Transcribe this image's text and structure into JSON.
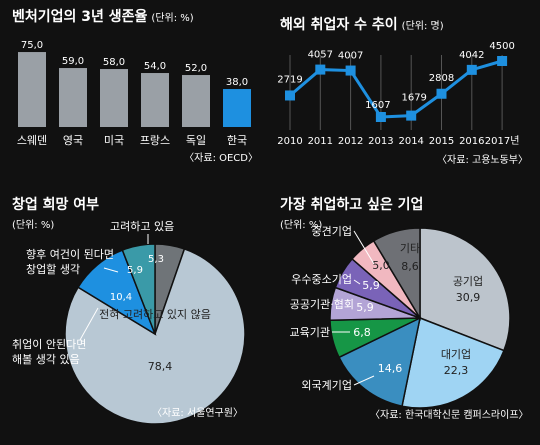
{
  "chart_data": [
    {
      "type": "bar",
      "title": "벤처기업의 3년 생존율",
      "unit": "(단위: %)",
      "categories": [
        "스웨덴",
        "영국",
        "미국",
        "프랑스",
        "독일",
        "한국"
      ],
      "values": [
        75.0,
        59.0,
        58.0,
        54.0,
        52.0,
        38.0
      ],
      "value_labels": [
        "75,0",
        "59,0",
        "58,0",
        "54,0",
        "52,0",
        "38,0"
      ],
      "ylim": [
        0,
        80
      ],
      "colors": {
        "default": "#9aa0a6",
        "highlight": "#1e90e0"
      },
      "highlight": "한국",
      "source": "〈자료: OECD〉"
    },
    {
      "type": "line",
      "title": "해외 취업자 수 추이",
      "unit": "(단위: 명)",
      "x": [
        "2010",
        "2011",
        "2012",
        "2013",
        "2014",
        "2015",
        "2016",
        "2017년"
      ],
      "values": [
        2719,
        4057,
        4007,
        1607,
        1679,
        2808,
        4042,
        4500
      ],
      "ylim": [
        1300,
        4800
      ],
      "color": "#1e90e0",
      "source": "〈자료: 고용노동부〉"
    },
    {
      "type": "pie",
      "title": "창업 희망 여부",
      "unit": "(단위: %)",
      "slices": [
        {
          "label": "전혀 고려하고 있지 않음",
          "value": 78.4,
          "value_label": "78,4",
          "color": "#b8c8d4"
        },
        {
          "label": "향후 여건이 된다면 창업할 생각",
          "value": 5.9,
          "value_label": "5,9",
          "color": "#3a9aa8"
        },
        {
          "label": "취업이 안된다면 해볼 생각 있음",
          "value": 10.4,
          "value_label": "10,4",
          "color": "#1e90e0"
        },
        {
          "label": "고려하고 있음",
          "value": 5.3,
          "value_label": "5,3",
          "color": "#6f7478"
        }
      ],
      "source": "〈자료: 서울연구원〉"
    },
    {
      "type": "pie",
      "title": "가장 취업하고 싶은 기업",
      "unit": "(단위: %)",
      "slices": [
        {
          "label": "공기업",
          "value": 30.9,
          "value_label": "30,9",
          "color": "#bcc4cc"
        },
        {
          "label": "대기업",
          "value": 22.3,
          "value_label": "22,3",
          "color": "#9fd4f3"
        },
        {
          "label": "외국계기업",
          "value": 14.6,
          "value_label": "14,6",
          "color": "#3a8ec0"
        },
        {
          "label": "교육기관",
          "value": 6.8,
          "value_label": "6,8",
          "color": "#169646"
        },
        {
          "label": "공공기관·협회",
          "value": 5.9,
          "value_label": "5,9",
          "color": "#b3a4d6"
        },
        {
          "label": "우수중소기업",
          "value": 5.9,
          "value_label": "5,9",
          "color": "#7a63b8"
        },
        {
          "label": "중견기업",
          "value": 5.0,
          "value_label": "5,0",
          "color": "#f1b8c0"
        },
        {
          "label": "기타",
          "value": 8.6,
          "value_label": "8,6",
          "color": "#6e7075"
        }
      ],
      "source": "〈자료: 한국대학신문 캠퍼스라이프〉"
    }
  ]
}
